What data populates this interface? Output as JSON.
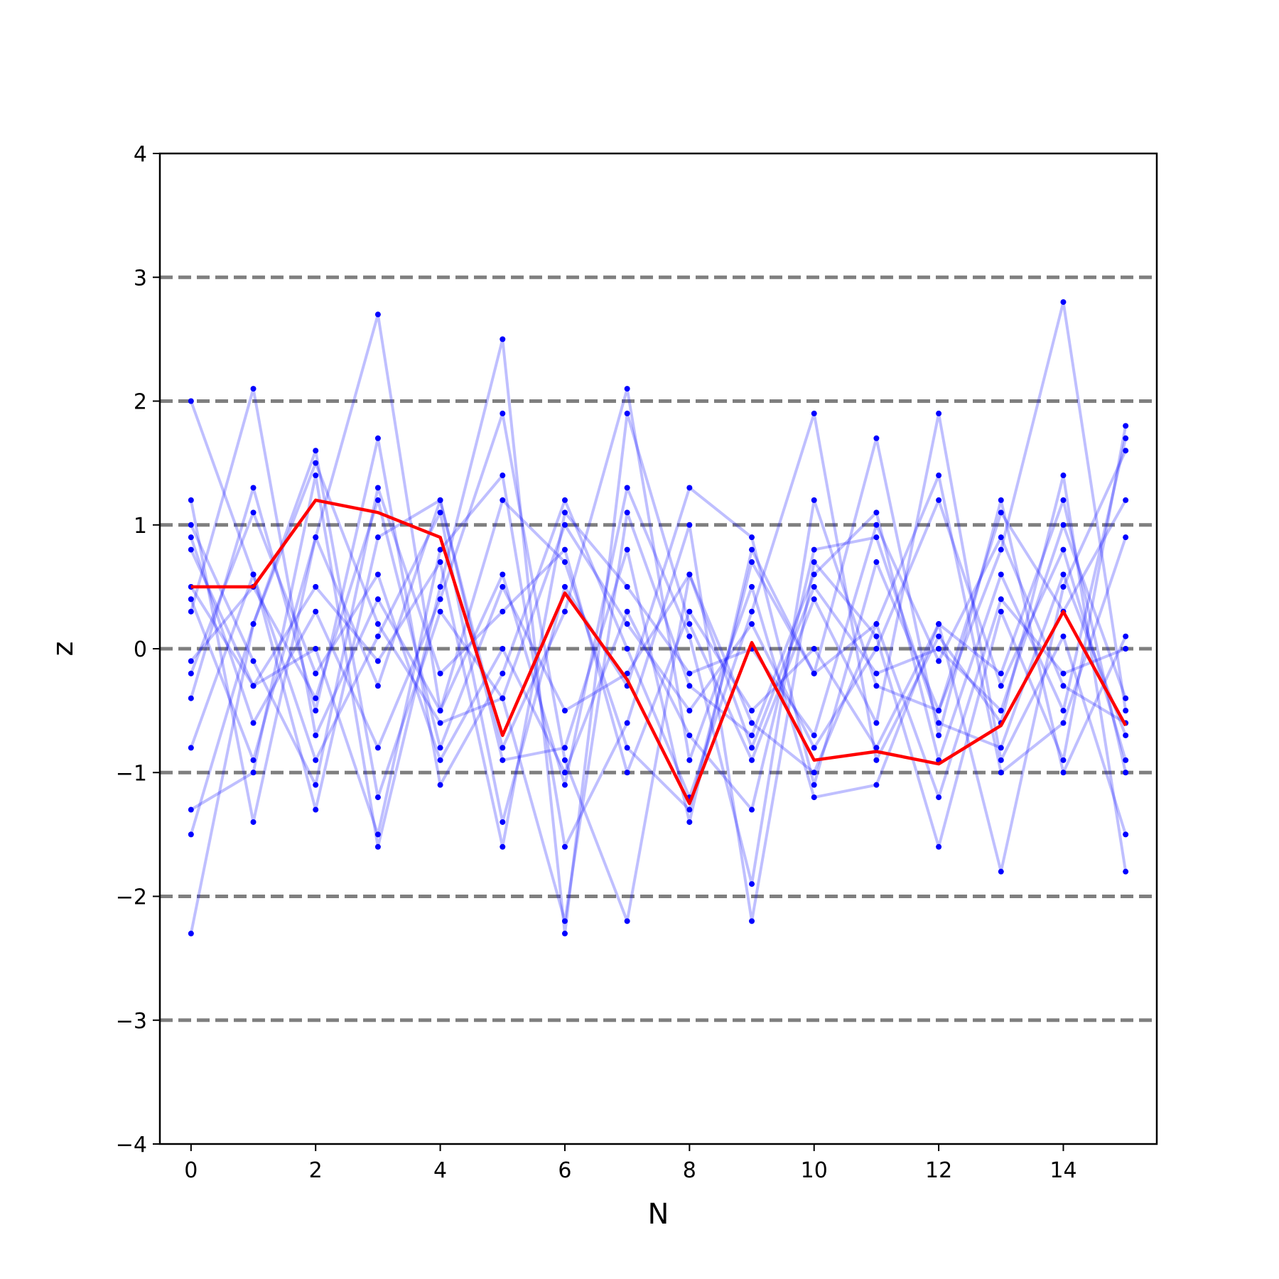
{
  "chart_data": {
    "type": "line",
    "title": "",
    "xlabel": "N",
    "ylabel": "z",
    "xlim": [
      -0.5,
      15.5
    ],
    "ylim": [
      -4,
      4
    ],
    "x_ticks": [
      0,
      2,
      4,
      6,
      8,
      10,
      12,
      14
    ],
    "x_tick_labels": [
      "0",
      "2",
      "4",
      "6",
      "8",
      "10",
      "12",
      "14"
    ],
    "y_ticks": [
      -4,
      -3,
      -2,
      -1,
      0,
      1,
      2,
      3,
      4
    ],
    "y_tick_labels": [
      "−4",
      "−3",
      "−2",
      "−1",
      "0",
      "1",
      "2",
      "3",
      "4"
    ],
    "reference_lines": [
      -3,
      -2,
      -1,
      0,
      1,
      2,
      3
    ],
    "reference_line_style": "dashed",
    "grid": false,
    "legend": "none",
    "x": [
      0,
      1,
      2,
      3,
      4,
      5,
      6,
      7,
      8,
      9,
      10,
      11,
      12,
      13,
      14,
      15
    ],
    "background_series": [
      {
        "values": [
          2.0,
          0.6,
          -0.9,
          0.1,
          1.1,
          -1.4,
          0.5,
          -0.3,
          1.3,
          0.9,
          -1.1,
          0.7,
          -0.5,
          1.1,
          0.3,
          1.2
        ]
      },
      {
        "values": [
          -1.3,
          -1.0,
          1.4,
          -1.6,
          0.5,
          2.5,
          -2.3,
          1.9,
          0.2,
          -0.9,
          0.4,
          -0.6,
          1.9,
          -0.9,
          0.1,
          -1.5
        ]
      },
      {
        "values": [
          0.3,
          2.1,
          -0.7,
          0.4,
          -0.5,
          1.2,
          0.7,
          -0.8,
          -1.3,
          0.7,
          -0.2,
          1.7,
          -0.7,
          1.2,
          -1.0,
          0.1
        ]
      },
      {
        "values": [
          -2.3,
          0.2,
          1.6,
          -1.2,
          0.3,
          -0.4,
          1.0,
          0.2,
          -0.5,
          0.2,
          -0.8,
          0.0,
          1.2,
          -0.3,
          0.8,
          -0.9
        ]
      },
      {
        "values": [
          1.2,
          -1.4,
          0.9,
          2.7,
          -0.5,
          0.6,
          -1.1,
          1.3,
          0.1,
          -1.9,
          1.2,
          -0.3,
          -0.5,
          0.8,
          2.8,
          -0.5
        ]
      },
      {
        "values": [
          -0.8,
          0.6,
          -1.3,
          0.9,
          1.2,
          -0.8,
          0.3,
          2.1,
          -0.9,
          0.5,
          -1.2,
          -1.1,
          0.2,
          -1.8,
          0.5,
          1.6
        ]
      },
      {
        "values": [
          0.5,
          -0.3,
          0.0,
          -1.5,
          0.8,
          1.4,
          -1.6,
          -0.6,
          1.0,
          -2.2,
          0.7,
          0.1,
          -1.6,
          0.3,
          -0.9,
          1.8
        ]
      },
      {
        "values": [
          -0.4,
          1.3,
          -0.5,
          1.7,
          -1.1,
          -0.2,
          1.2,
          0.0,
          -1.2,
          0.3,
          1.9,
          -0.9,
          0.1,
          -0.6,
          1.4,
          -1.8
        ]
      },
      {
        "values": [
          0.9,
          -0.6,
          0.3,
          -0.8,
          0.4,
          1.9,
          -0.9,
          -2.2,
          0.6,
          -0.6,
          -1.0,
          0.2,
          1.4,
          -1.0,
          -0.6,
          0.9
        ]
      },
      {
        "values": [
          -1.5,
          0.2,
          1.5,
          0.2,
          -0.6,
          -0.4,
          -2.2,
          1.1,
          -0.3,
          -0.7,
          0.6,
          1.1,
          -0.9,
          0.6,
          -0.5,
          1.7
        ]
      },
      {
        "values": [
          1.0,
          -0.1,
          -1.1,
          1.3,
          -0.2,
          0.3,
          0.8,
          -1.0,
          0.3,
          -0.5,
          0.0,
          -0.8,
          0.2,
          -0.2,
          1.2,
          -1.0
        ]
      },
      {
        "values": [
          0.4,
          -0.9,
          0.9,
          -0.3,
          1.2,
          -0.9,
          -0.8,
          0.8,
          -1.4,
          0.8,
          -0.2,
          0.2,
          -1.2,
          0.4,
          -0.2,
          0.0
        ]
      },
      {
        "values": [
          -0.2,
          1.1,
          -0.2,
          0.6,
          -0.9,
          0.0,
          -1.0,
          0.3,
          -0.7,
          -1.3,
          0.8,
          0.9,
          -0.6,
          -0.8,
          0.6,
          -0.7
        ]
      },
      {
        "values": [
          0.8,
          -0.3,
          0.5,
          -0.1,
          0.7,
          -1.6,
          1.1,
          0.5,
          -0.2,
          0.0,
          -0.7,
          1.0,
          -0.1,
          0.9,
          -0.3,
          -0.6
        ]
      },
      {
        "values": [
          -0.1,
          0.5,
          -0.4,
          1.2,
          -0.8,
          0.5,
          -0.5,
          -0.2,
          0.6,
          -0.8,
          0.5,
          -0.2,
          0.0,
          -0.5,
          1.0,
          -0.4
        ]
      }
    ],
    "series": [
      {
        "values": [
          0.5,
          0.5,
          1.2,
          1.1,
          0.9,
          -0.7,
          0.45,
          -0.25,
          -1.25,
          0.05,
          -0.9,
          -0.83,
          -0.93,
          -0.62,
          0.3,
          -0.62
        ]
      }
    ]
  }
}
